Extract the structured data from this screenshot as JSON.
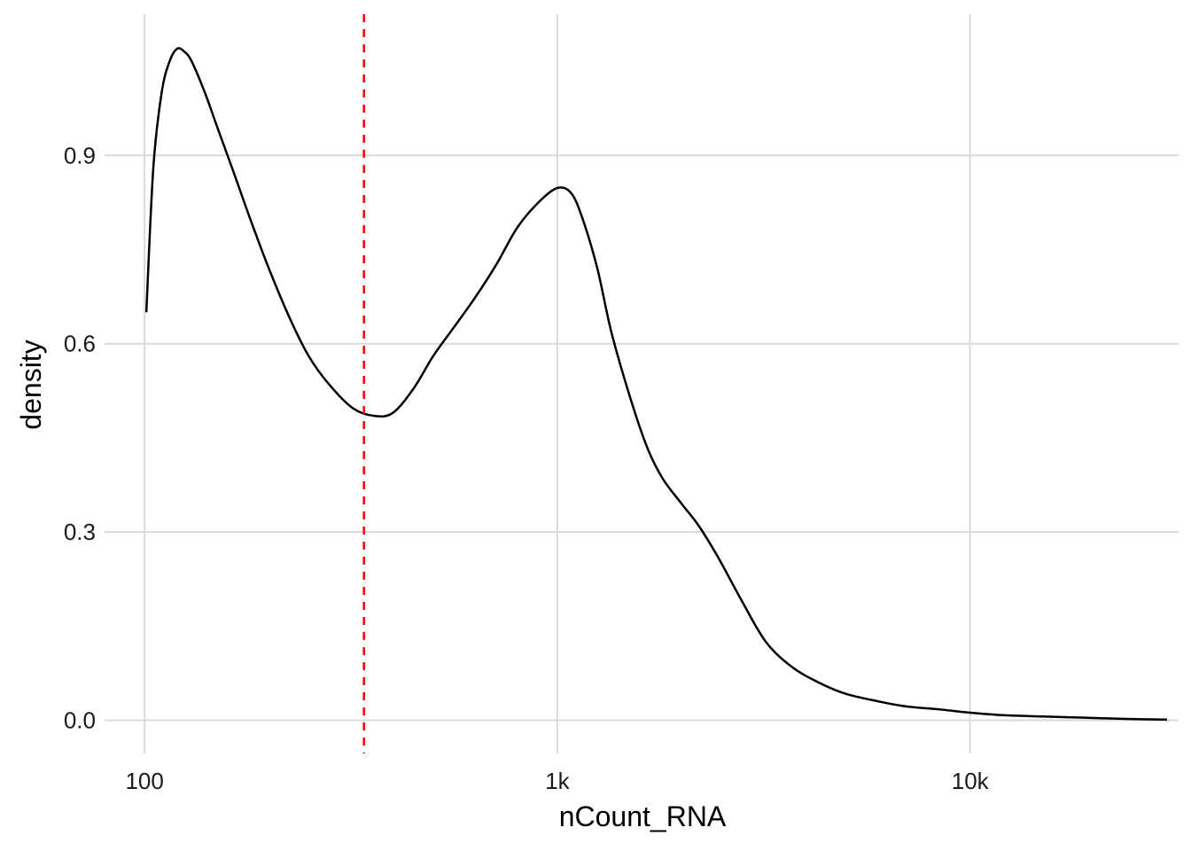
{
  "chart_data": {
    "type": "line",
    "title": "",
    "xlabel": "nCount_RNA",
    "ylabel": "density",
    "x_scale": "log10",
    "xlim": [
      80,
      32000
    ],
    "ylim": [
      -0.053,
      1.125
    ],
    "x_ticks": [
      {
        "value": 100,
        "label": "100"
      },
      {
        "value": 1000,
        "label": "1k"
      },
      {
        "value": 10000,
        "label": "10k"
      }
    ],
    "y_ticks": [
      {
        "value": 0.0,
        "label": "0.0"
      },
      {
        "value": 0.3,
        "label": "0.3"
      },
      {
        "value": 0.6,
        "label": "0.6"
      },
      {
        "value": 0.9,
        "label": "0.9"
      }
    ],
    "grid": true,
    "legend": "none",
    "series": [
      {
        "x": [
          101,
          105,
          110,
          115,
          120,
          125,
          130,
          140,
          150,
          165,
          180,
          200,
          225,
          250,
          280,
          320,
          360,
          400,
          450,
          500,
          560,
          630,
          710,
          800,
          900,
          1000,
          1080,
          1150,
          1250,
          1350,
          1500,
          1650,
          1800,
          2000,
          2200,
          2450,
          2800,
          3200,
          3700,
          4300,
          5000,
          6000,
          7000,
          8500,
          10000,
          12000,
          15000,
          19000,
          24000,
          30000
        ],
        "y": [
          0.65,
          0.88,
          1.0,
          1.05,
          1.07,
          1.065,
          1.05,
          1.0,
          0.945,
          0.87,
          0.8,
          0.72,
          0.64,
          0.58,
          0.535,
          0.497,
          0.485,
          0.49,
          0.53,
          0.58,
          0.625,
          0.672,
          0.725,
          0.785,
          0.825,
          0.848,
          0.84,
          0.8,
          0.72,
          0.62,
          0.515,
          0.435,
          0.385,
          0.345,
          0.31,
          0.26,
          0.19,
          0.125,
          0.085,
          0.06,
          0.042,
          0.03,
          0.022,
          0.017,
          0.012,
          0.008,
          0.006,
          0.004,
          0.002,
          0.001
        ]
      }
    ],
    "vlines": [
      {
        "x": 340,
        "color": "#ff0000",
        "style": "dashed"
      }
    ]
  }
}
